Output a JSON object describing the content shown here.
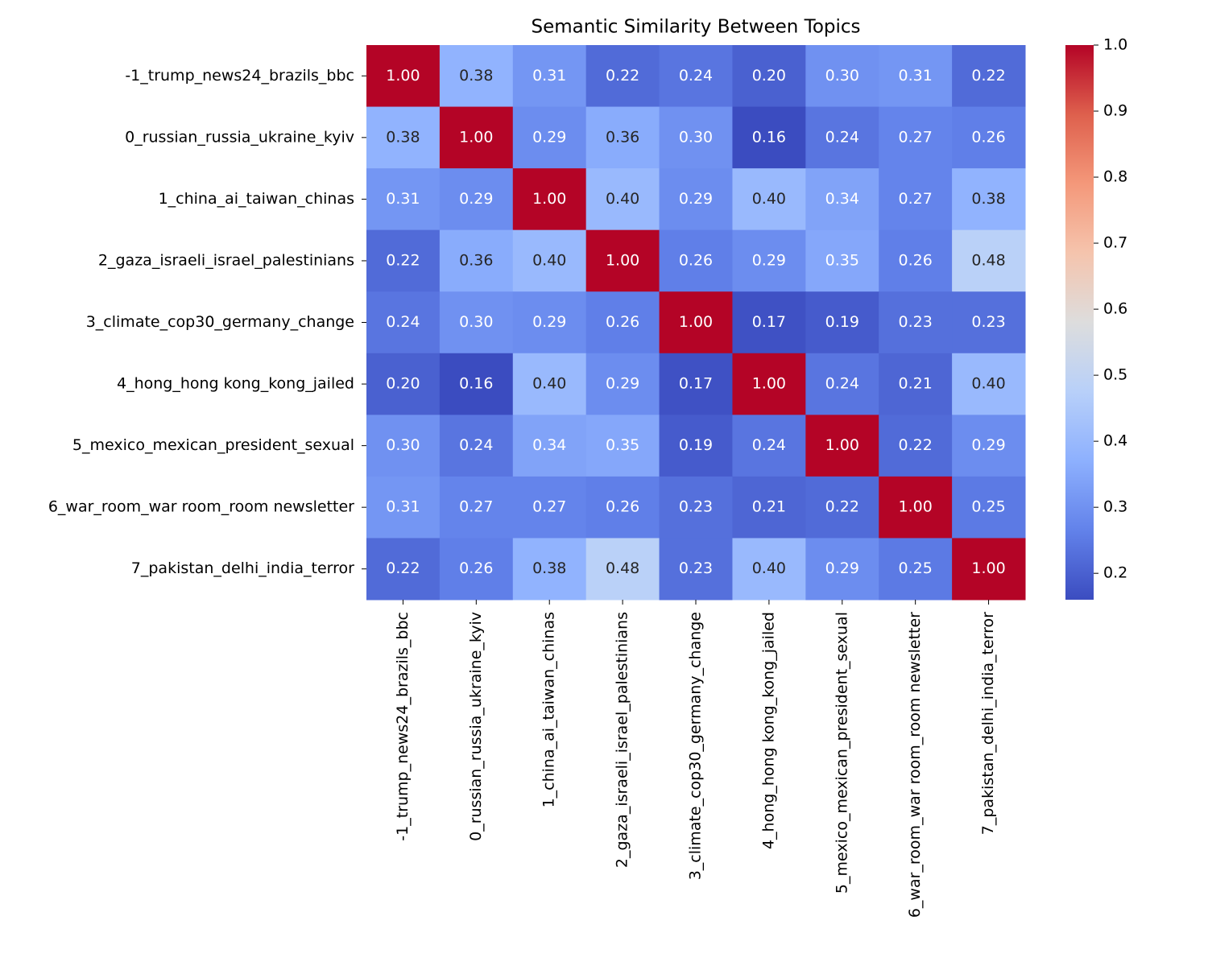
{
  "chart_data": {
    "type": "heatmap",
    "title": "Semantic Similarity Between Topics",
    "colormap": "coolwarm",
    "x_categories": [
      "-1_trump_news24_brazils_bbc",
      "0_russian_russia_ukraine_kyiv",
      "1_china_ai_taiwan_chinas",
      "2_gaza_israeli_israel_palestinians",
      "3_climate_cop30_germany_change",
      "4_hong_hong kong_kong_jailed",
      "5_mexico_mexican_president_sexual",
      "6_war_room_war room_room newsletter",
      "7_pakistan_delhi_india_terror"
    ],
    "y_categories": [
      "-1_trump_news24_brazils_bbc",
      "0_russian_russia_ukraine_kyiv",
      "1_china_ai_taiwan_chinas",
      "2_gaza_israeli_israel_palestinians",
      "3_climate_cop30_germany_change",
      "4_hong_hong kong_kong_jailed",
      "5_mexico_mexican_president_sexual",
      "6_war_room_war room_room newsletter",
      "7_pakistan_delhi_india_terror"
    ],
    "values": [
      [
        1,
        0.38,
        0.31,
        0.22,
        0.24,
        0.2,
        0.3,
        0.31,
        0.22
      ],
      [
        0.38,
        1,
        0.29,
        0.36,
        0.3,
        0.16,
        0.24,
        0.27,
        0.26
      ],
      [
        0.31,
        0.29,
        1,
        0.4,
        0.29,
        0.4,
        0.34,
        0.27,
        0.38
      ],
      [
        0.22,
        0.36,
        0.4,
        1,
        0.26,
        0.29,
        0.35,
        0.26,
        0.48
      ],
      [
        0.24,
        0.3,
        0.29,
        0.26,
        1,
        0.17,
        0.19,
        0.23,
        0.23
      ],
      [
        0.2,
        0.16,
        0.4,
        0.29,
        0.17,
        1,
        0.24,
        0.21,
        0.4
      ],
      [
        0.3,
        0.24,
        0.34,
        0.35,
        0.19,
        0.24,
        1,
        0.22,
        0.29
      ],
      [
        0.31,
        0.27,
        0.27,
        0.26,
        0.23,
        0.21,
        0.22,
        1,
        0.25
      ],
      [
        0.22,
        0.26,
        0.38,
        0.48,
        0.23,
        0.4,
        0.29,
        0.25,
        1
      ]
    ],
    "value_labels": [
      [
        "1.00",
        "0.38",
        "0.31",
        "0.22",
        "0.24",
        "0.20",
        "0.30",
        "0.31",
        "0.22"
      ],
      [
        "0.38",
        "1.00",
        "0.29",
        "0.36",
        "0.30",
        "0.16",
        "0.24",
        "0.27",
        "0.26"
      ],
      [
        "0.31",
        "0.29",
        "1.00",
        "0.40",
        "0.29",
        "0.40",
        "0.34",
        "0.27",
        "0.38"
      ],
      [
        "0.22",
        "0.36",
        "0.40",
        "1.00",
        "0.26",
        "0.29",
        "0.35",
        "0.26",
        "0.48"
      ],
      [
        "0.24",
        "0.30",
        "0.29",
        "0.26",
        "1.00",
        "0.17",
        "0.19",
        "0.23",
        "0.23"
      ],
      [
        "0.20",
        "0.16",
        "0.40",
        "0.29",
        "0.17",
        "1.00",
        "0.24",
        "0.21",
        "0.40"
      ],
      [
        "0.30",
        "0.24",
        "0.34",
        "0.35",
        "0.19",
        "0.24",
        "1.00",
        "0.22",
        "0.29"
      ],
      [
        "0.31",
        "0.27",
        "0.27",
        "0.26",
        "0.23",
        "0.21",
        "0.22",
        "1.00",
        "0.25"
      ],
      [
        "0.22",
        "0.26",
        "0.38",
        "0.48",
        "0.23",
        "0.40",
        "0.29",
        "0.25",
        "1.00"
      ]
    ],
    "clim": [
      0.16,
      1
    ],
    "cticks": [
      0.2,
      0.3,
      0.4,
      0.5,
      0.6,
      0.7,
      0.8,
      0.9,
      {
        "value": 1,
        "label": "1.0"
      }
    ]
  }
}
